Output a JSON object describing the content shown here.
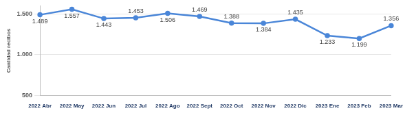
{
  "chart_data": {
    "type": "line",
    "y_label": "Cantidad recibos",
    "categories": [
      "2022 Abr",
      "2022 May",
      "2022 Jun",
      "2022 Jul",
      "2022 Ago",
      "2022 Sept",
      "2022 Oct",
      "2022 Nov",
      "2022 Dic",
      "2023 Ene",
      "2023 Feb",
      "2023 Mar"
    ],
    "values": [
      1489,
      1557,
      1443,
      1453,
      1506,
      1469,
      1388,
      1384,
      1435,
      1233,
      1199,
      1356
    ],
    "value_labels": [
      "1.489",
      "1.557",
      "1.443",
      "1.453",
      "1.506",
      "1.469",
      "1.388",
      "1.384",
      "1.435",
      "1.233",
      "1.199",
      "1.356"
    ],
    "color": "#4a86d8",
    "marker": "circle",
    "ylim": [
      500,
      1600
    ],
    "yticks": [
      {
        "value": 500,
        "label": "500"
      },
      {
        "value": 1000,
        "label": "1.000"
      },
      {
        "value": 1500,
        "label": "1.500"
      }
    ],
    "grid": true,
    "data_labels": true
  }
}
